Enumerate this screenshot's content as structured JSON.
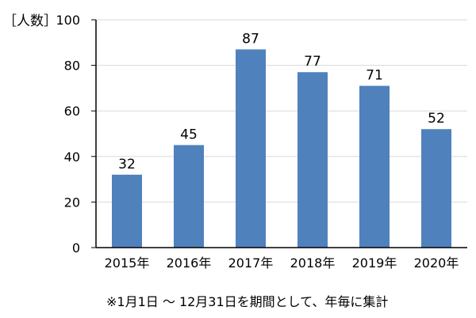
{
  "chart_data": {
    "type": "bar",
    "ylabel": "［人数］",
    "categories": [
      "2015年",
      "2016年",
      "2017年",
      "2018年",
      "2019年",
      "2020年"
    ],
    "values": [
      32,
      45,
      87,
      77,
      71,
      52
    ],
    "data_labels": [
      "32",
      "45",
      "87",
      "77",
      "71",
      "52"
    ],
    "ylim": [
      0,
      100
    ],
    "yticks": [
      0,
      20,
      40,
      60,
      80,
      100
    ],
    "grid": "horizontal",
    "bar_color": "#4f81bd",
    "footnote": "※1月1日 ～ 12月31日を期間として、年毎に集計"
  }
}
